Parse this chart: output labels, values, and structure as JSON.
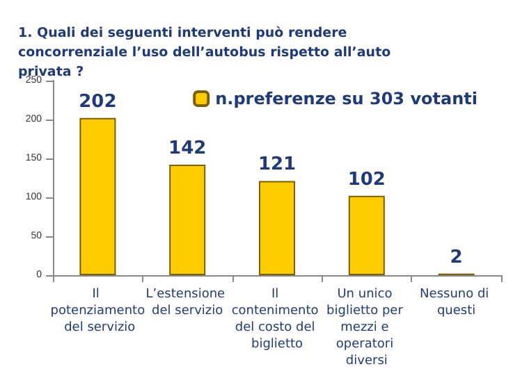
{
  "chart_data": {
    "type": "bar",
    "title": "1. Quali dei seguenti interventi può rendere concorrenziale l’uso dell’autobus rispetto all’auto privata ?",
    "categories": [
      "Il potenziamento del servizio",
      "L’estensione del servizio",
      "Il contenimento del costo del biglietto",
      "Un unico biglietto per mezzi e operatori diversi",
      "Nessuno di questi"
    ],
    "series": [
      {
        "name": "n.preferenze su 303 votanti",
        "color": "#ffcc00",
        "values": [
          202,
          142,
          121,
          102,
          2
        ]
      }
    ],
    "ylim": [
      0,
      250
    ],
    "yticks": [
      0,
      50,
      100,
      150,
      200,
      250
    ],
    "grid": false,
    "legend": "top right",
    "data_labels": true
  }
}
